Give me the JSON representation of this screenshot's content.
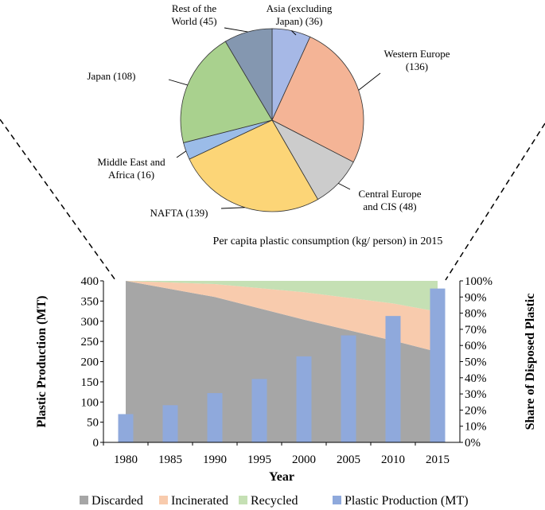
{
  "chart_data": [
    {
      "type": "pie",
      "title": "Per capita plastic consumption (kg/ person) in 2015",
      "slices": [
        {
          "label": "Asia (excluding Japan) (36)",
          "lines": [
            "Asia (excluding",
            "Japan) (36)"
          ],
          "value": 36,
          "color": "#a6b8e6"
        },
        {
          "label": "Western Europe (136)",
          "lines": [
            "Western Europe",
            "(136)"
          ],
          "value": 136,
          "color": "#f4b496"
        },
        {
          "label": "Central Europe and CIS (48)",
          "lines": [
            "Central Europe",
            "and CIS (48)"
          ],
          "value": 48,
          "color": "#cccccc"
        },
        {
          "label": "NAFTA (139)",
          "lines": [
            "NAFTA (139)"
          ],
          "value": 139,
          "color": "#fcd577"
        },
        {
          "label": "Middle East and Africa (16)",
          "lines": [
            "Middle East and",
            "Africa (16)"
          ],
          "value": 16,
          "color": "#9bbce8"
        },
        {
          "label": "Japan (108)",
          "lines": [
            "Japan (108)"
          ],
          "value": 108,
          "color": "#a9d18e"
        },
        {
          "label": "Rest of the World (45)",
          "lines": [
            "Rest of the",
            "World (45)"
          ],
          "value": 45,
          "color": "#8497b0"
        }
      ]
    },
    {
      "type": "bar+area",
      "xlabel": "Year",
      "ylabel_left": "Plastic Production (MT)",
      "ylabel_right": "Share of Disposed Plastic",
      "ylim_left": [
        0,
        400
      ],
      "ylim_right": [
        0,
        100
      ],
      "yticks_left": [
        0,
        50,
        100,
        150,
        200,
        250,
        300,
        350,
        400
      ],
      "yticks_right": [
        "0%",
        "10%",
        "20%",
        "30%",
        "40%",
        "50%",
        "60%",
        "70%",
        "80%",
        "90%",
        "100%"
      ],
      "categories": [
        "1980",
        "1985",
        "1990",
        "1995",
        "2000",
        "2005",
        "2010",
        "2015"
      ],
      "bars": {
        "name": "Plastic Production (MT)",
        "color": "#8fa9dc",
        "values": [
          70,
          92,
          122,
          157,
          213,
          265,
          313,
          381
        ]
      },
      "areas": [
        {
          "name": "Discarded",
          "color": "#a6a6a6",
          "x": [
            1980,
            1990,
            2000,
            2010,
            2015
          ],
          "values": [
            100,
            90,
            76,
            63,
            56
          ]
        },
        {
          "name": "Incinerated",
          "color": "#f8cbad",
          "x": [
            1980,
            1990,
            2000,
            2010,
            2015
          ],
          "values": [
            0,
            8,
            17,
            23,
            25
          ]
        },
        {
          "name": "Recycled",
          "color": "#c5e0b4",
          "x": [
            1980,
            1990,
            2000,
            2010,
            2015
          ],
          "values": [
            0,
            2,
            7,
            14,
            19
          ]
        }
      ],
      "legend": [
        {
          "name": "Discarded",
          "color": "#a6a6a6"
        },
        {
          "name": "Incinerated",
          "color": "#f8cbad"
        },
        {
          "name": "Recycled",
          "color": "#c5e0b4"
        },
        {
          "name": "Plastic Production (MT)",
          "color": "#8fa9dc"
        }
      ],
      "legend_position": "bottom"
    }
  ]
}
